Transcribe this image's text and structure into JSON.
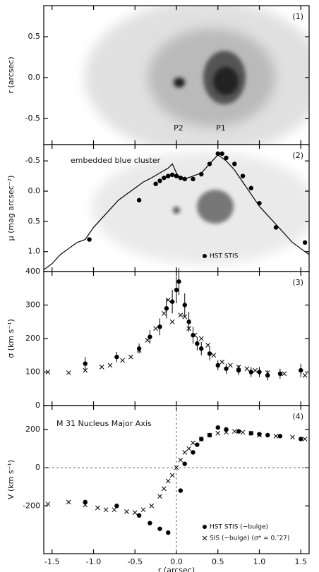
{
  "chart_data": [
    {
      "type": "image",
      "panel_label": "(1)",
      "y_label": "r (arcsec)",
      "ylim": [
        -0.82,
        0.88
      ],
      "yticks": [
        0.5,
        {
          "value": 0,
          "label": "0.0"
        },
        -0.5
      ],
      "annotations": [
        "P2",
        "P1"
      ]
    },
    {
      "type": "scatter",
      "panel_label": "(2)",
      "y_label": "μ (mag arcsec⁻²)",
      "ylim": [
        -0.77,
        1.33
      ],
      "y_inverted": true,
      "yticks": [
        -0.5,
        {
          "value": 0,
          "label": "0.0"
        },
        0.5,
        {
          "value": 1,
          "label": "1.0"
        }
      ],
      "annotations": [
        "embedded blue cluster"
      ],
      "series": [
        {
          "name": "HST STIS",
          "marker": "circle",
          "color": "#000",
          "x": [
            -1.05,
            -0.45,
            -0.25,
            -0.2,
            -0.15,
            -0.1,
            -0.05,
            0.0,
            0.05,
            0.1,
            0.2,
            0.3,
            0.4,
            0.5,
            0.55,
            0.6,
            0.7,
            0.8,
            0.9,
            1.0,
            1.2,
            1.55
          ],
          "values": [
            0.8,
            0.15,
            -0.12,
            -0.17,
            -0.22,
            -0.25,
            -0.27,
            -0.25,
            -0.22,
            -0.2,
            -0.2,
            -0.28,
            -0.45,
            -0.62,
            -0.62,
            -0.55,
            -0.45,
            -0.25,
            -0.05,
            0.2,
            0.6,
            0.85
          ]
        },
        {
          "marker": "line",
          "color": "#000",
          "x": [
            -1.6,
            -1.5,
            -1.4,
            -1.3,
            -1.2,
            -1.1,
            -1.0,
            -0.9,
            -0.8,
            -0.7,
            -0.6,
            -0.5,
            -0.4,
            -0.3,
            -0.2,
            -0.1,
            -0.05,
            0.0,
            0.05,
            0.1,
            0.2,
            0.3,
            0.4,
            0.5,
            0.6,
            0.7,
            0.8,
            0.9,
            1.0,
            1.1,
            1.2,
            1.3,
            1.4,
            1.5,
            1.6
          ],
          "values": [
            1.3,
            1.2,
            1.05,
            0.95,
            0.85,
            0.8,
            0.6,
            0.45,
            0.3,
            0.15,
            0.05,
            -0.05,
            -0.15,
            -0.22,
            -0.3,
            -0.38,
            -0.45,
            -0.3,
            -0.2,
            -0.2,
            -0.25,
            -0.3,
            -0.45,
            -0.6,
            -0.5,
            -0.35,
            -0.15,
            0.05,
            0.25,
            0.4,
            0.55,
            0.7,
            0.85,
            0.95,
            1.05
          ]
        }
      ]
    },
    {
      "type": "scatter",
      "panel_label": "(3)",
      "y_label": "σ (km s⁻¹)",
      "ylim": [
        0,
        400
      ],
      "yticks": [
        0,
        100,
        200,
        300,
        400
      ],
      "series": [
        {
          "marker": "circle",
          "color": "#000",
          "x": [
            -1.1,
            -0.72,
            -0.45,
            -0.32,
            -0.2,
            -0.12,
            -0.05,
            0.0,
            0.03,
            0.1,
            0.15,
            0.2,
            0.25,
            0.3,
            0.4,
            0.5,
            0.6,
            0.75,
            0.9,
            1.0,
            1.1,
            1.25,
            1.5
          ],
          "values": [
            125,
            145,
            170,
            205,
            235,
            290,
            310,
            345,
            370,
            300,
            250,
            210,
            185,
            170,
            155,
            120,
            110,
            105,
            100,
            100,
            90,
            95,
            105
          ],
          "errors": [
            20,
            15,
            15,
            20,
            25,
            30,
            35,
            40,
            40,
            35,
            30,
            25,
            20,
            20,
            20,
            15,
            15,
            15,
            15,
            15,
            15,
            15,
            20
          ]
        },
        {
          "marker": "cross",
          "color": "#000",
          "x": [
            -1.55,
            -1.3,
            -1.1,
            -0.9,
            -0.8,
            -0.65,
            -0.55,
            -0.45,
            -0.35,
            -0.25,
            -0.15,
            -0.1,
            -0.05,
            0.05,
            0.1,
            0.15,
            0.22,
            0.3,
            0.38,
            0.45,
            0.55,
            0.65,
            0.75,
            0.85,
            0.95,
            1.1,
            1.3,
            1.55
          ],
          "values": [
            100,
            98,
            105,
            115,
            120,
            135,
            145,
            165,
            195,
            230,
            275,
            315,
            250,
            270,
            265,
            230,
            210,
            200,
            180,
            150,
            130,
            120,
            115,
            110,
            105,
            98,
            95,
            90
          ]
        }
      ]
    },
    {
      "type": "scatter",
      "panel_label": "(4)",
      "y_label": "V (km s⁻¹)",
      "x_label": "r (arcsec)",
      "ylim": [
        -450,
        325
      ],
      "yticks": [
        -200,
        0,
        200
      ],
      "xlim": [
        -1.6,
        1.6
      ],
      "xticks": [
        -1.5,
        {
          "value": -1,
          "label": "-1.0"
        },
        -0.5,
        {
          "value": 0,
          "label": "0.0"
        },
        0.5,
        {
          "value": 1,
          "label": "1.0"
        },
        1.5
      ],
      "annotations": [
        "M 31 Nucleus Major Axis"
      ],
      "reference_lines": {
        "x": 0,
        "y": 0
      },
      "series": [
        {
          "name": "HST STIS (−bulge)",
          "marker": "circle",
          "color": "#000",
          "x": [
            -1.1,
            -0.72,
            -0.45,
            -0.32,
            -0.2,
            -0.1,
            0.05,
            0.1,
            0.2,
            0.25,
            0.3,
            0.4,
            0.5,
            0.6,
            0.75,
            0.9,
            1.0,
            1.1,
            1.25,
            1.5
          ],
          "values": [
            -180,
            -200,
            -250,
            -290,
            -320,
            -340,
            -120,
            20,
            80,
            120,
            150,
            170,
            210,
            200,
            190,
            180,
            175,
            170,
            165,
            150
          ]
        },
        {
          "name": "SIS (−bulge) (σ* = 0.″27)",
          "marker": "cross",
          "color": "#000",
          "x": [
            -1.55,
            -1.3,
            -1.1,
            -0.95,
            -0.85,
            -0.75,
            -0.6,
            -0.5,
            -0.4,
            -0.3,
            -0.2,
            -0.15,
            -0.1,
            -0.05,
            0.0,
            0.05,
            0.1,
            0.15,
            0.2,
            0.3,
            0.4,
            0.5,
            0.6,
            0.7,
            0.8,
            0.9,
            1.0,
            1.2,
            1.4,
            1.55
          ],
          "values": [
            -190,
            -180,
            -195,
            -210,
            -220,
            -220,
            -230,
            -235,
            -220,
            -200,
            -150,
            -110,
            -70,
            -40,
            0,
            40,
            80,
            100,
            130,
            150,
            170,
            180,
            185,
            190,
            185,
            180,
            170,
            165,
            160,
            150
          ]
        }
      ]
    }
  ]
}
